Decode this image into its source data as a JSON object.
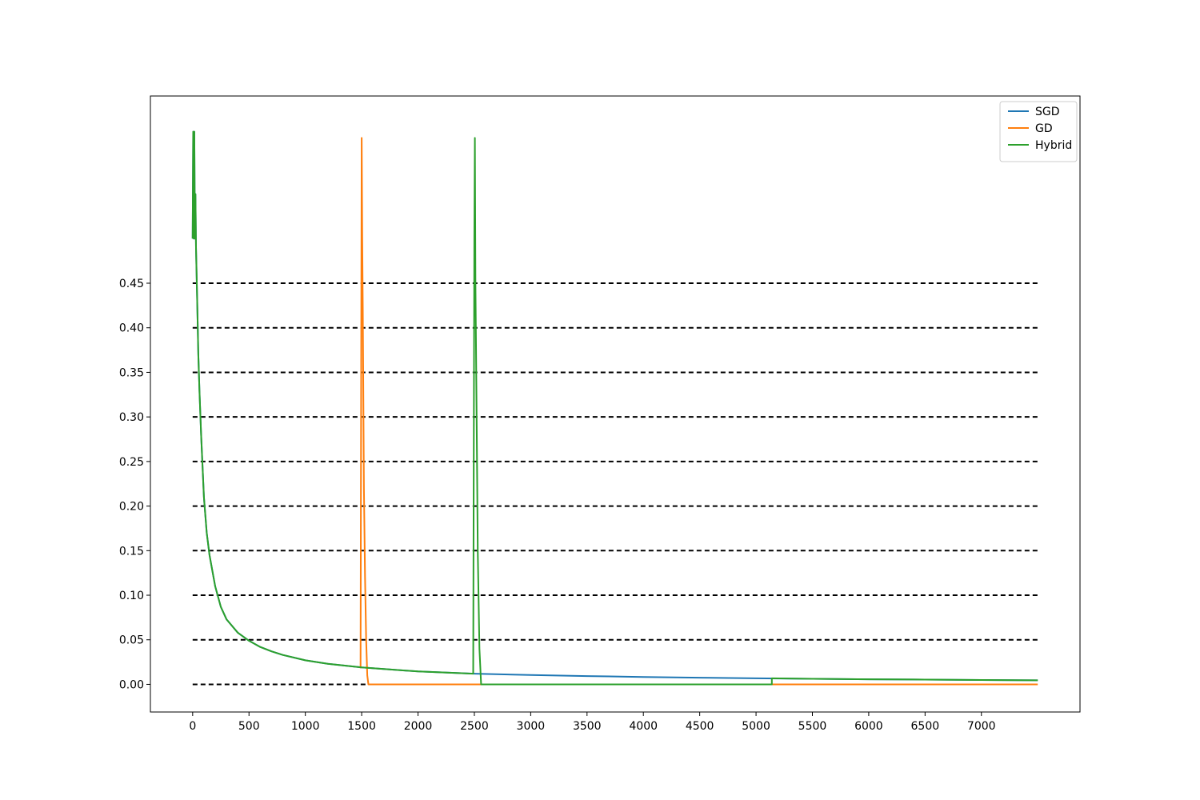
{
  "chart_data": {
    "type": "line",
    "title": "",
    "xlabel": "",
    "ylabel": "",
    "xlim": [
      -375,
      7875
    ],
    "ylim": [
      -0.031,
      0.66
    ],
    "xticks": [
      0,
      500,
      1000,
      1500,
      2000,
      2500,
      3000,
      3500,
      4000,
      4500,
      5000,
      5500,
      6000,
      6500,
      7000
    ],
    "yticks": [
      0.0,
      0.05,
      0.1,
      0.15,
      0.2,
      0.25,
      0.3,
      0.35,
      0.4,
      0.45
    ],
    "ytick_labels": [
      "0.00",
      "0.05",
      "0.10",
      "0.15",
      "0.20",
      "0.25",
      "0.30",
      "0.35",
      "0.40",
      "0.45"
    ],
    "grid": false,
    "reference_lines": {
      "style": "dashed",
      "color": "#000000",
      "x_range": [
        0,
        7500
      ],
      "y_values": [
        0.0,
        0.05,
        0.1,
        0.15,
        0.2,
        0.25,
        0.3,
        0.35,
        0.4,
        0.45
      ]
    },
    "legend": {
      "position": "top-right"
    },
    "series": [
      {
        "name": "SGD",
        "color": "#1f77b4",
        "x": [
          0,
          5,
          10,
          15,
          20,
          25,
          30,
          40,
          50,
          60,
          75,
          100,
          125,
          150,
          200,
          250,
          300,
          400,
          500,
          600,
          700,
          800,
          1000,
          1200,
          1500,
          2000,
          2500,
          3000,
          3500,
          4000,
          4500,
          5000,
          5500,
          6000,
          6500,
          7000,
          7500
        ],
        "y": [
          0.5,
          0.62,
          0.5,
          0.62,
          0.5,
          0.55,
          0.49,
          0.43,
          0.37,
          0.33,
          0.28,
          0.21,
          0.17,
          0.145,
          0.11,
          0.087,
          0.073,
          0.058,
          0.049,
          0.042,
          0.037,
          0.033,
          0.027,
          0.023,
          0.019,
          0.0145,
          0.012,
          0.0105,
          0.0093,
          0.0083,
          0.0075,
          0.0068,
          0.0062,
          0.0057,
          0.0053,
          0.0049,
          0.0045
        ]
      },
      {
        "name": "GD",
        "color": "#ff7f0e",
        "x": [
          1490,
          1500,
          1505,
          1510,
          1515,
          1520,
          1530,
          1540,
          1550,
          1560,
          1600,
          2000,
          3000,
          4000,
          5000,
          6000,
          7000,
          7500
        ],
        "y": [
          0.018,
          0.613,
          0.5,
          0.42,
          0.32,
          0.22,
          0.12,
          0.05,
          0.01,
          0.0,
          0.0,
          0.0,
          0.0,
          0.0,
          0.0,
          0.0,
          0.0,
          0.0
        ]
      },
      {
        "name": "Hybrid",
        "color": "#2ca02c",
        "x": [
          0,
          5,
          10,
          15,
          20,
          25,
          30,
          40,
          50,
          60,
          75,
          100,
          125,
          150,
          200,
          250,
          300,
          400,
          500,
          600,
          700,
          800,
          1000,
          1200,
          1500,
          2000,
          2490,
          2500,
          2505,
          2510,
          2520,
          2530,
          2545,
          2560,
          3000,
          4000,
          5000,
          5140,
          5140,
          5500,
          6000,
          6500,
          7000,
          7500
        ],
        "y": [
          0.5,
          0.62,
          0.5,
          0.62,
          0.5,
          0.55,
          0.49,
          0.43,
          0.37,
          0.33,
          0.28,
          0.21,
          0.17,
          0.145,
          0.11,
          0.087,
          0.073,
          0.058,
          0.049,
          0.042,
          0.037,
          0.033,
          0.027,
          0.023,
          0.019,
          0.0145,
          0.012,
          0.5,
          0.613,
          0.45,
          0.3,
          0.15,
          0.04,
          0.0,
          0.0,
          0.0,
          0.0,
          0.0,
          0.0068,
          0.0062,
          0.0057,
          0.0053,
          0.0049,
          0.0045
        ]
      }
    ]
  }
}
